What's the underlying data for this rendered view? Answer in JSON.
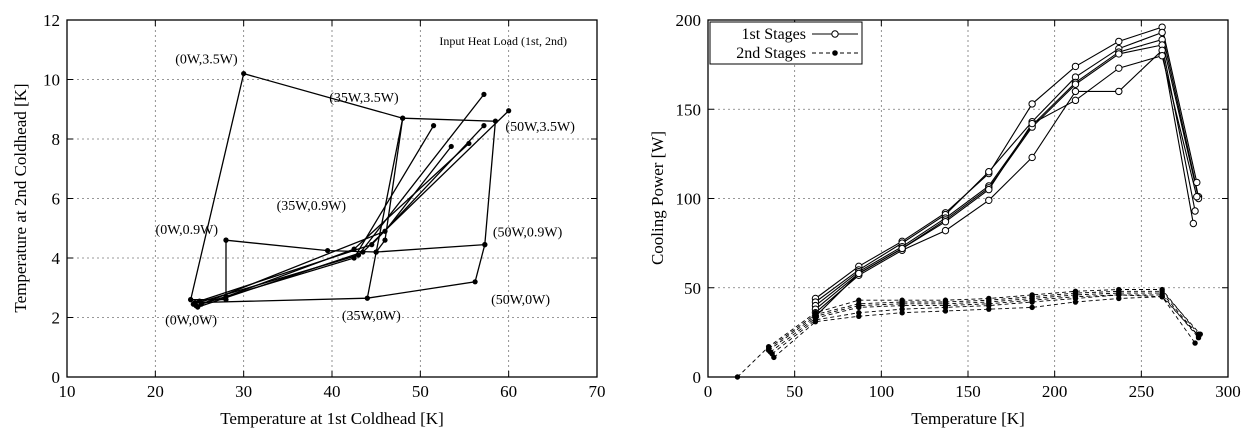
{
  "chart_data": [
    {
      "type": "scatter",
      "xlabel": "Temperature at 1st Coldhead [K]",
      "ylabel": "Temperature at 2nd Coldhead [K]",
      "xlim": [
        10,
        70
      ],
      "ylim": [
        0,
        12
      ],
      "xticks": [
        10,
        20,
        30,
        40,
        50,
        60,
        70
      ],
      "yticks": [
        0,
        2,
        4,
        6,
        8,
        10,
        12
      ],
      "grid": true,
      "annotation_title": "Input Heat Load (1st, 2nd)",
      "annotations": [
        {
          "text": "(0W,3.5W)",
          "x": 30.0,
          "y": 10.2
        },
        {
          "text": "(35W,3.5W)",
          "x": 48.0,
          "y": 8.7
        },
        {
          "text": "(50W,3.5W)",
          "x": 58.5,
          "y": 8.6
        },
        {
          "text": "(35W,0.9W)",
          "x": 42.5,
          "y": 4.4
        },
        {
          "text": "(0W,0.9W)",
          "x": 28.0,
          "y": 4.6
        },
        {
          "text": "(50W,0.9W)",
          "x": 57.3,
          "y": 4.45
        },
        {
          "text": "(50W,0W)",
          "x": 56.2,
          "y": 3.2
        },
        {
          "text": "(35W,0W)",
          "x": 44.0,
          "y": 2.65
        },
        {
          "text": "(0W,0W)",
          "x": 24.5,
          "y": 2.5
        }
      ],
      "series": [
        {
          "points": [
            [
              24.0,
              2.6
            ],
            [
              30.0,
              10.2
            ],
            [
              48.0,
              8.7
            ],
            [
              58.5,
              8.6
            ],
            [
              57.3,
              4.45
            ],
            [
              56.2,
              3.2
            ],
            [
              44.0,
              2.65
            ],
            [
              24.5,
              2.5
            ]
          ]
        },
        {
          "points": [
            [
              28.0,
              4.6
            ],
            [
              28.0,
              2.6
            ],
            [
              24.0,
              2.6
            ]
          ]
        },
        {
          "points": [
            [
              28.0,
              4.6
            ],
            [
              39.5,
              4.25
            ],
            [
              45.0,
              4.2
            ],
            [
              57.3,
              4.45
            ]
          ]
        },
        {
          "points": [
            [
              48.0,
              8.7
            ],
            [
              45.0,
              4.2
            ],
            [
              44.0,
              2.65
            ]
          ]
        },
        {
          "points": [
            [
              48.0,
              8.7
            ],
            [
              46.0,
              4.6
            ],
            [
              45.0,
              4.2
            ]
          ]
        },
        {
          "points": [
            [
              24.3,
              2.45
            ],
            [
              43.0,
              4.1
            ],
            [
              57.2,
              9.5
            ]
          ]
        },
        {
          "points": [
            [
              24.6,
              2.4
            ],
            [
              42.5,
              4.0
            ],
            [
              51.5,
              8.45
            ]
          ]
        },
        {
          "points": [
            [
              24.8,
              2.35
            ],
            [
              43.5,
              4.2
            ],
            [
              60.0,
              8.95
            ]
          ]
        },
        {
          "points": [
            [
              25.2,
              2.45
            ],
            [
              46.0,
              4.9
            ],
            [
              53.5,
              7.75
            ]
          ]
        },
        {
          "points": [
            [
              28.0,
              2.7
            ],
            [
              42.5,
              4.3
            ],
            [
              55.5,
              7.85
            ]
          ]
        },
        {
          "points": [
            [
              25.0,
              2.55
            ],
            [
              44.5,
              4.45
            ],
            [
              57.2,
              8.45
            ]
          ]
        }
      ]
    },
    {
      "type": "line",
      "xlabel": "Temperature [K]",
      "ylabel": "Cooling Power [W]",
      "xlim": [
        0,
        300
      ],
      "ylim": [
        0,
        200
      ],
      "xticks": [
        0,
        50,
        100,
        150,
        200,
        250,
        300
      ],
      "yticks": [
        0,
        50,
        100,
        150,
        200
      ],
      "grid": true,
      "legend": "top-left",
      "series": [
        {
          "name": "1st Stages",
          "marker": "open-circle",
          "line": "solid",
          "curves": [
            [
              [
                62,
                44
              ],
              [
                87,
                62
              ],
              [
                112,
                76
              ],
              [
                137,
                92
              ],
              [
                162,
                114
              ],
              [
                187,
                153
              ],
              [
                212,
                174
              ],
              [
                237,
                188
              ],
              [
                262,
                196
              ],
              [
                282,
                109
              ]
            ],
            [
              [
                62,
                42
              ],
              [
                87,
                60
              ],
              [
                112,
                75
              ],
              [
                137,
                91
              ],
              [
                162,
                115
              ],
              [
                187,
                143
              ],
              [
                212,
                168
              ],
              [
                237,
                184
              ],
              [
                262,
                193
              ],
              [
                283,
                101
              ]
            ],
            [
              [
                62,
                40
              ],
              [
                87,
                59
              ],
              [
                112,
                73
              ],
              [
                137,
                89
              ],
              [
                162,
                107
              ],
              [
                187,
                141
              ],
              [
                212,
                165
              ],
              [
                237,
                182
              ],
              [
                262,
                189
              ],
              [
                283,
                100
              ]
            ],
            [
              [
                62,
                38
              ],
              [
                87,
                58
              ],
              [
                112,
                72
              ],
              [
                137,
                88
              ],
              [
                162,
                106
              ],
              [
                187,
                140
              ],
              [
                212,
                164
              ],
              [
                237,
                181
              ],
              [
                262,
                186
              ],
              [
                281,
                93
              ]
            ],
            [
              [
                62,
                36
              ],
              [
                87,
                57
              ],
              [
                112,
                71
              ],
              [
                137,
                82
              ],
              [
                162,
                99
              ],
              [
                187,
                123
              ],
              [
                212,
                160
              ],
              [
                237,
                160
              ],
              [
                262,
                183
              ],
              [
                280,
                86
              ]
            ],
            [
              [
                62,
                34
              ],
              [
                87,
                58
              ],
              [
                112,
                72
              ],
              [
                137,
                87
              ],
              [
                162,
                105
              ],
              [
                187,
                142
              ],
              [
                212,
                155
              ],
              [
                237,
                173
              ],
              [
                262,
                180
              ],
              [
                282,
                101
              ]
            ]
          ]
        },
        {
          "name": "2nd Stages",
          "marker": "filled-circle",
          "line": "dashed",
          "curves": [
            [
              [
                17,
                0
              ],
              [
                35,
                17
              ],
              [
                62,
                36
              ],
              [
                87,
                43
              ],
              [
                112,
                43
              ],
              [
                137,
                43
              ],
              [
                162,
                44
              ],
              [
                187,
                46
              ],
              [
                212,
                48
              ],
              [
                237,
                49
              ],
              [
                262,
                49
              ],
              [
                283,
                24
              ]
            ],
            [
              [
                35,
                16
              ],
              [
                62,
                35
              ],
              [
                87,
                41
              ],
              [
                112,
                42
              ],
              [
                137,
                42
              ],
              [
                162,
                43
              ],
              [
                187,
                45
              ],
              [
                212,
                47
              ],
              [
                237,
                48
              ],
              [
                262,
                48
              ],
              [
                284,
                24
              ]
            ],
            [
              [
                35,
                15
              ],
              [
                62,
                34
              ],
              [
                87,
                40
              ],
              [
                112,
                41
              ],
              [
                137,
                41
              ],
              [
                162,
                42
              ],
              [
                187,
                44
              ],
              [
                212,
                46
              ],
              [
                237,
                47
              ],
              [
                262,
                47
              ],
              [
                283,
                23
              ]
            ],
            [
              [
                36,
                14
              ],
              [
                62,
                33
              ],
              [
                87,
                39
              ],
              [
                112,
                40
              ],
              [
                137,
                40
              ],
              [
                162,
                41
              ],
              [
                187,
                43
              ],
              [
                212,
                45
              ],
              [
                237,
                46
              ],
              [
                262,
                46
              ],
              [
                283,
                22
              ]
            ],
            [
              [
                37,
                13
              ],
              [
                62,
                32
              ],
              [
                87,
                36
              ],
              [
                112,
                38
              ],
              [
                137,
                39
              ],
              [
                162,
                40
              ],
              [
                187,
                42
              ],
              [
                212,
                44
              ],
              [
                237,
                46
              ],
              [
                262,
                45
              ],
              [
                281,
                19
              ]
            ],
            [
              [
                38,
                11
              ],
              [
                62,
                31
              ],
              [
                87,
                34
              ],
              [
                112,
                36
              ],
              [
                137,
                37
              ],
              [
                162,
                38
              ],
              [
                187,
                39
              ],
              [
                212,
                42
              ],
              [
                237,
                44
              ],
              [
                262,
                45
              ],
              [
                283,
                23
              ]
            ]
          ]
        }
      ]
    }
  ]
}
